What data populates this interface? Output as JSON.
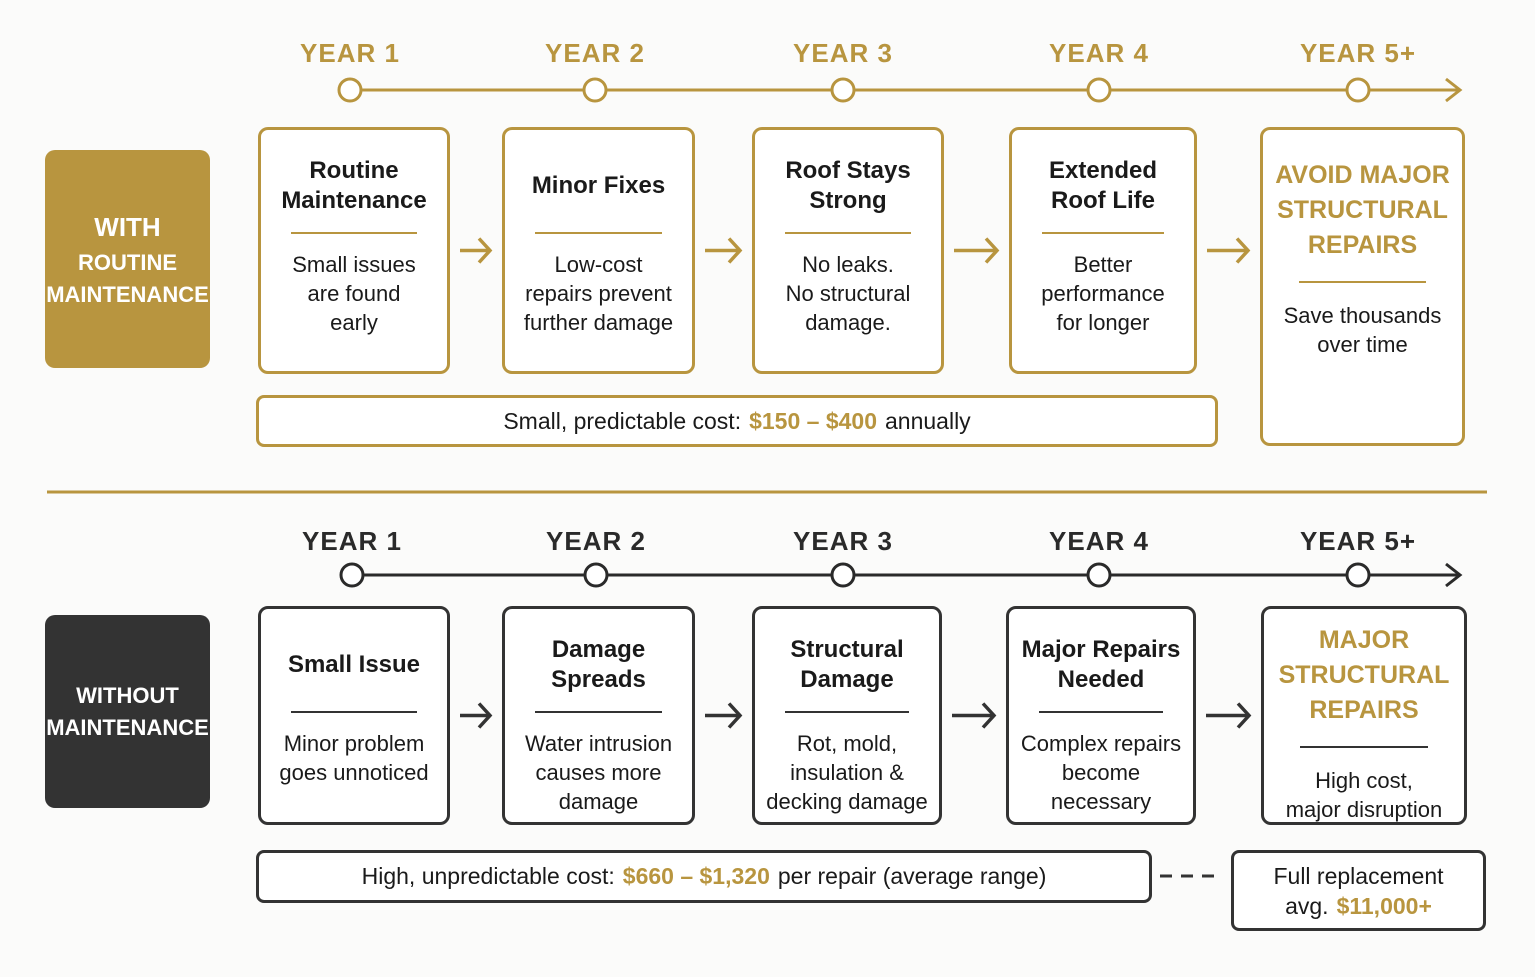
{
  "sections": [
    {
      "label": [
        "WITH",
        "ROUTINE",
        "MAINTENANCE"
      ],
      "years": [
        "YEAR 1",
        "YEAR 2",
        "YEAR 3",
        "YEAR 4",
        "YEAR 5+"
      ],
      "steps": [
        {
          "title": "Routine\nMaintenance",
          "text": "Small issues\nare found\nearly"
        },
        {
          "title": "Minor Fixes",
          "text": "Low-cost\nrepairs prevent\nfurther damage"
        },
        {
          "title": "Roof Stays\nStrong",
          "text": "No leaks.\nNo structural\ndamage."
        },
        {
          "title": "Extended\nRoof Life",
          "text": "Better\nperformance\nfor longer"
        }
      ],
      "final": {
        "title": "AVOID MAJOR\nSTRUCTURAL\nREPAIRS",
        "text": "Save thousands\nover time"
      },
      "cost": {
        "prefix": "Small, predictable cost:",
        "amount": "$150 – $400",
        "suffix": "annually"
      }
    },
    {
      "label": [
        "WITHOUT",
        "MAINTENANCE"
      ],
      "years": [
        "YEAR 1",
        "YEAR 2",
        "YEAR 3",
        "YEAR 4",
        "YEAR 5+"
      ],
      "steps": [
        {
          "title": "Small Issue",
          "text": "Minor problem\ngoes unnoticed"
        },
        {
          "title": "Damage Spreads",
          "text": "Water intrusion\ncauses more\ndamage"
        },
        {
          "title": "Structural\nDamage",
          "text": "Rot, mold,\ninsulation &\ndecking damage"
        },
        {
          "title": "Major Repairs\nNeeded",
          "text": "Complex repairs\nbecome\nnecessary"
        }
      ],
      "final": {
        "title": "MAJOR\nSTRUCTURAL\nREPAIRS",
        "text": "High cost,\nmajor disruption"
      },
      "cost": {
        "prefix": "High, unpredictable cost:",
        "amount": "$660 – $1,320",
        "suffix": "per repair (average range)"
      },
      "replacement": {
        "line1": "Full replacement",
        "prefix": "avg.",
        "amount": "$11,000+"
      }
    }
  ]
}
